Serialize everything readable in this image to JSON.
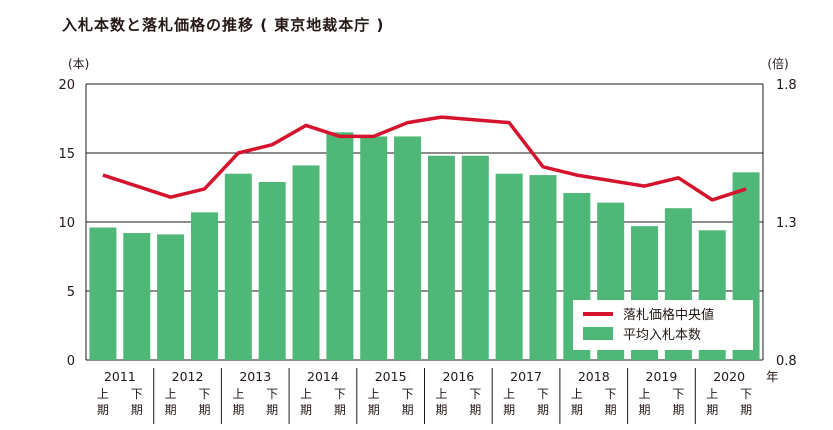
{
  "chart_data": {
    "type": "bar",
    "title": "入札本数と落札価格の推移 ( 東京地裁本庁 )",
    "y_left_unit": "(本)",
    "y_right_unit": "(倍)",
    "year_suffix": "年",
    "years": [
      "2011",
      "2012",
      "2013",
      "2014",
      "2015",
      "2016",
      "2017",
      "2018",
      "2019",
      "2020"
    ],
    "halves": [
      "上\n期",
      "下\n期"
    ],
    "y_left": {
      "ylim": [
        0,
        20
      ],
      "ticks": [
        "0",
        "5",
        "10",
        "15",
        "20"
      ]
    },
    "y_right": {
      "ylim": [
        0.8,
        1.8
      ],
      "ticks": [
        "0.8",
        "1.3",
        "1.8"
      ]
    },
    "grid": true,
    "legend_position": "bottom-right",
    "series": [
      {
        "name": "平均入札本数",
        "type": "bar",
        "axis": "left",
        "color": "#4fb879",
        "values": [
          9.6,
          9.2,
          9.1,
          10.7,
          13.5,
          12.9,
          14.1,
          16.5,
          16.2,
          16.2,
          14.8,
          14.8,
          13.5,
          13.4,
          12.1,
          11.4,
          9.7,
          11.0,
          9.4,
          13.6
        ]
      },
      {
        "name": "落札価格中央値",
        "type": "line",
        "axis": "right",
        "color": "#d6132c",
        "values": [
          1.47,
          1.43,
          1.39,
          1.42,
          1.55,
          1.58,
          1.65,
          1.61,
          1.61,
          1.66,
          1.68,
          1.67,
          1.66,
          1.5,
          1.47,
          1.45,
          1.43,
          1.46,
          1.38,
          1.42
        ]
      }
    ]
  }
}
